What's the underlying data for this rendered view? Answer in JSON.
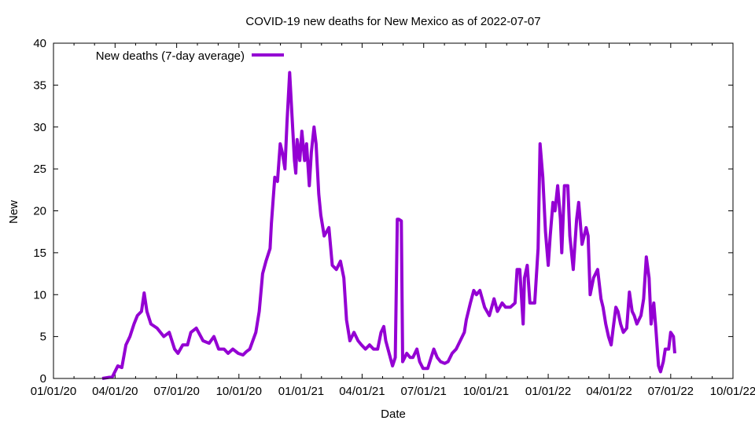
{
  "chart_data": {
    "type": "line",
    "title": "COVID-19 new deaths for New Mexico as of 2022-07-07",
    "xlabel": "Date",
    "ylabel": "New",
    "x_start_date": "2020-01-01",
    "x_unit": "days since 2020-01-01",
    "xlim": [
      0,
      1004
    ],
    "ylim": [
      0,
      40
    ],
    "yticks": [
      0,
      5,
      10,
      15,
      20,
      25,
      30,
      35,
      40
    ],
    "xticks": [
      {
        "day": 0,
        "label": "01/01/20"
      },
      {
        "day": 91,
        "label": "04/01/20"
      },
      {
        "day": 182,
        "label": "07/01/20"
      },
      {
        "day": 274,
        "label": "10/01/20"
      },
      {
        "day": 366,
        "label": "01/01/21"
      },
      {
        "day": 456,
        "label": "04/01/21"
      },
      {
        "day": 547,
        "label": "07/01/21"
      },
      {
        "day": 639,
        "label": "10/01/21"
      },
      {
        "day": 731,
        "label": "01/01/22"
      },
      {
        "day": 821,
        "label": "04/01/22"
      },
      {
        "day": 912,
        "label": "07/01/22"
      },
      {
        "day": 1004,
        "label": "10/01/22"
      }
    ],
    "grid": false,
    "legend": {
      "position": "top-left",
      "entries": [
        "New deaths (7-day average)"
      ]
    },
    "series": [
      {
        "name": "New deaths (7-day average)",
        "color": "#9400d3",
        "points": [
          [
            72,
            0
          ],
          [
            87,
            0.2
          ],
          [
            95,
            1.5
          ],
          [
            101,
            1.3
          ],
          [
            107,
            4
          ],
          [
            113,
            5
          ],
          [
            119,
            6.5
          ],
          [
            124,
            7.5
          ],
          [
            130,
            8
          ],
          [
            134,
            10.2
          ],
          [
            138,
            8
          ],
          [
            144,
            6.5
          ],
          [
            153,
            6
          ],
          [
            163,
            5
          ],
          [
            171,
            5.5
          ],
          [
            179,
            3.5
          ],
          [
            184,
            3
          ],
          [
            191,
            4
          ],
          [
            198,
            4
          ],
          [
            203,
            5.5
          ],
          [
            211,
            6
          ],
          [
            221,
            4.5
          ],
          [
            230,
            4.2
          ],
          [
            237,
            5
          ],
          [
            244,
            3.5
          ],
          [
            252,
            3.5
          ],
          [
            258,
            3
          ],
          [
            265,
            3.5
          ],
          [
            273,
            3
          ],
          [
            280,
            2.8
          ],
          [
            285,
            3.2
          ],
          [
            290,
            3.5
          ],
          [
            299,
            5.5
          ],
          [
            304,
            8
          ],
          [
            309,
            12.5
          ],
          [
            314,
            14
          ],
          [
            320,
            15.5
          ],
          [
            322,
            18.5
          ],
          [
            327,
            24
          ],
          [
            331,
            23.5
          ],
          [
            335,
            28
          ],
          [
            338,
            27
          ],
          [
            342,
            25
          ],
          [
            345,
            30.5
          ],
          [
            349,
            36.5
          ],
          [
            352,
            32
          ],
          [
            356,
            26
          ],
          [
            358,
            24.5
          ],
          [
            360,
            28.5
          ],
          [
            364,
            26
          ],
          [
            367,
            29.5
          ],
          [
            371,
            26
          ],
          [
            374,
            28
          ],
          [
            378,
            23
          ],
          [
            381,
            27
          ],
          [
            385,
            30
          ],
          [
            388,
            28
          ],
          [
            392,
            22
          ],
          [
            395,
            19.5
          ],
          [
            400,
            17
          ],
          [
            407,
            18
          ],
          [
            412,
            13.5
          ],
          [
            418,
            13
          ],
          [
            424,
            14
          ],
          [
            429,
            12
          ],
          [
            433,
            7
          ],
          [
            438,
            4.5
          ],
          [
            444,
            5.5
          ],
          [
            450,
            4.5
          ],
          [
            455,
            4
          ],
          [
            461,
            3.5
          ],
          [
            467,
            4
          ],
          [
            473,
            3.5
          ],
          [
            479,
            3.5
          ],
          [
            484,
            5.5
          ],
          [
            488,
            6.2
          ],
          [
            491,
            4.5
          ],
          [
            496,
            3
          ],
          [
            501,
            1.5
          ],
          [
            505,
            2.5
          ],
          [
            508,
            19
          ],
          [
            510,
            19
          ],
          [
            514,
            18.8
          ],
          [
            516,
            2
          ],
          [
            522,
            3
          ],
          [
            527,
            2.5
          ],
          [
            531,
            2.5
          ],
          [
            537,
            3.5
          ],
          [
            541,
            2
          ],
          [
            546,
            1.2
          ],
          [
            553,
            1.2
          ],
          [
            558,
            2.5
          ],
          [
            562,
            3.5
          ],
          [
            567,
            2.5
          ],
          [
            572,
            2
          ],
          [
            578,
            1.8
          ],
          [
            583,
            2
          ],
          [
            589,
            3
          ],
          [
            595,
            3.5
          ],
          [
            601,
            4.5
          ],
          [
            607,
            5.5
          ],
          [
            610,
            7
          ],
          [
            616,
            9
          ],
          [
            621,
            10.5
          ],
          [
            625,
            10
          ],
          [
            630,
            10.5
          ],
          [
            637,
            8.5
          ],
          [
            644,
            7.5
          ],
          [
            651,
            9.5
          ],
          [
            656,
            8
          ],
          [
            663,
            9
          ],
          [
            668,
            8.5
          ],
          [
            675,
            8.5
          ],
          [
            682,
            9
          ],
          [
            685,
            13
          ],
          [
            689,
            13
          ],
          [
            694,
            6.5
          ],
          [
            696,
            12
          ],
          [
            700,
            13.5
          ],
          [
            704,
            9
          ],
          [
            711,
            9
          ],
          [
            716,
            15.5
          ],
          [
            719,
            28
          ],
          [
            723,
            24
          ],
          [
            727,
            17.5
          ],
          [
            731,
            13.5
          ],
          [
            734,
            17
          ],
          [
            738,
            21
          ],
          [
            741,
            20
          ],
          [
            745,
            23
          ],
          [
            749,
            19
          ],
          [
            751,
            15
          ],
          [
            755,
            23
          ],
          [
            760,
            23
          ],
          [
            763,
            17
          ],
          [
            768,
            13
          ],
          [
            773,
            19
          ],
          [
            776,
            21
          ],
          [
            781,
            16
          ],
          [
            787,
            18
          ],
          [
            790,
            17
          ],
          [
            793,
            10
          ],
          [
            798,
            12
          ],
          [
            804,
            13
          ],
          [
            809,
            9.5
          ],
          [
            812,
            8.5
          ],
          [
            816,
            6.5
          ],
          [
            820,
            5
          ],
          [
            824,
            4
          ],
          [
            827,
            6
          ],
          [
            831,
            8.5
          ],
          [
            834,
            8
          ],
          [
            838,
            6.5
          ],
          [
            842,
            5.5
          ],
          [
            847,
            6
          ],
          [
            851,
            10.3
          ],
          [
            855,
            8
          ],
          [
            858,
            7.5
          ],
          [
            862,
            6.5
          ],
          [
            868,
            7.5
          ],
          [
            872,
            9.5
          ],
          [
            876,
            14.5
          ],
          [
            880,
            12
          ],
          [
            883,
            6.5
          ],
          [
            887,
            9
          ],
          [
            890,
            6
          ],
          [
            894,
            1.5
          ],
          [
            897,
            0.8
          ],
          [
            901,
            2
          ],
          [
            904,
            3.5
          ],
          [
            909,
            3.5
          ],
          [
            912,
            5.5
          ],
          [
            916,
            5
          ],
          [
            918,
            3
          ]
        ]
      }
    ]
  }
}
